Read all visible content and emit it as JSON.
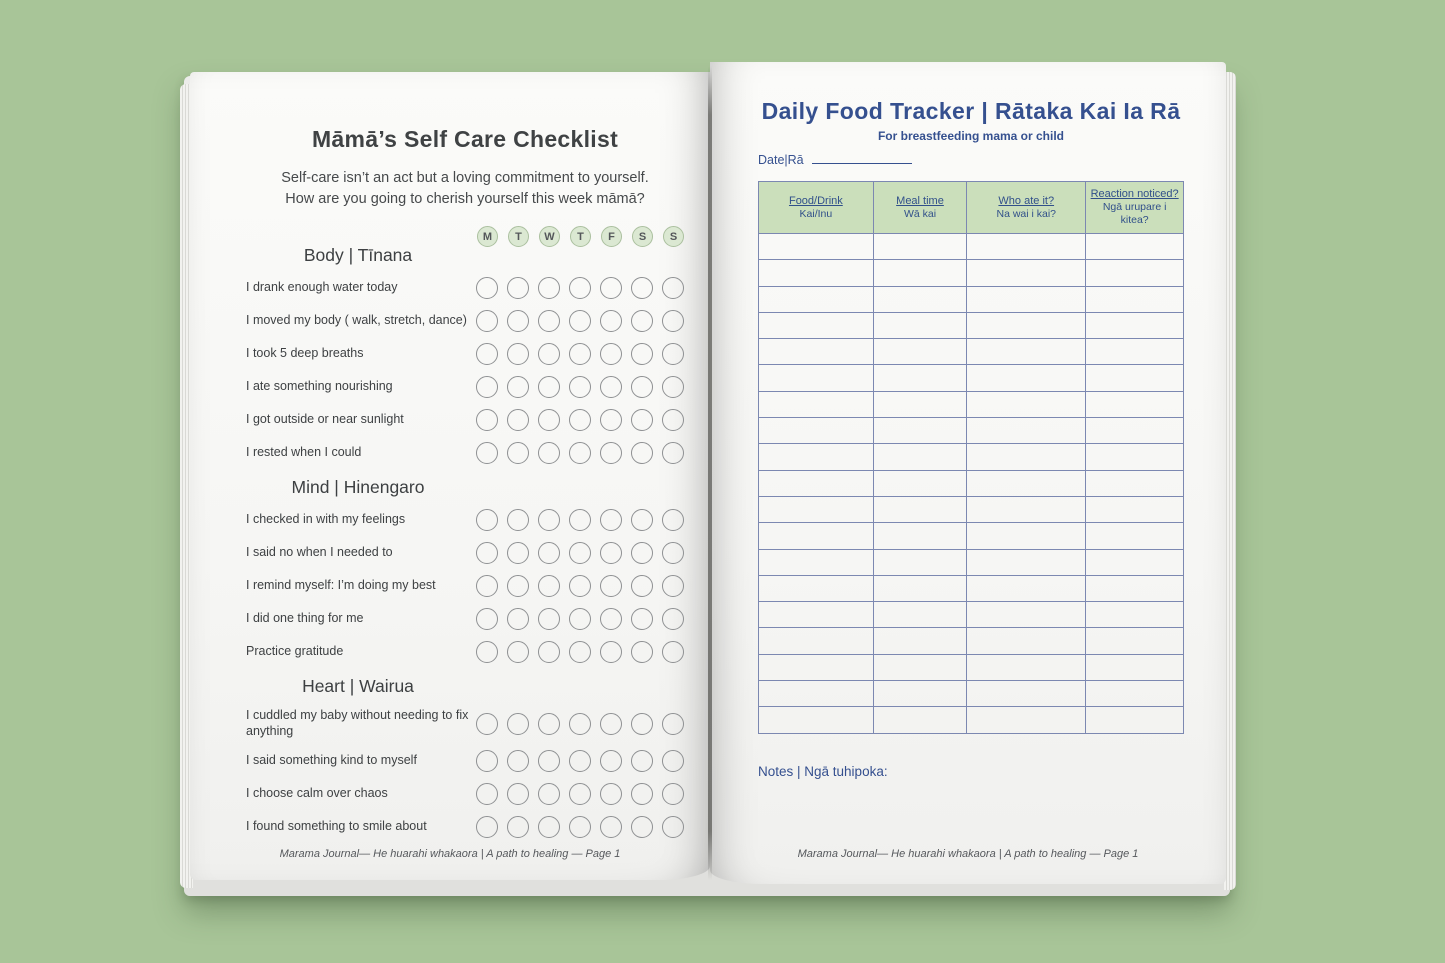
{
  "colors": {
    "bg": "#a8c598",
    "page": "#f7f7f5",
    "ink": "#3f4244",
    "navy": "#35508f",
    "border": "#7c88b1",
    "green": "#cbdfbb",
    "circle": "#8f9193",
    "dayfill": "#dbe8d2",
    "daystroke": "#abc09f",
    "footer": "#55585c"
  },
  "left_page": {
    "title": "Māmā’s Self Care Checklist",
    "subtitle_line1": "Self-care isn’t an act but a loving commitment to yourself.",
    "subtitle_line2": "How are you going to cherish yourself this week māmā?",
    "day_labels": [
      "M",
      "T",
      "W",
      "T",
      "F",
      "S",
      "S"
    ],
    "sections": [
      {
        "heading": "Body | Tīnana",
        "items": [
          "I drank enough water today",
          "I moved my body ( walk, stretch, dance)",
          "I took 5 deep breaths",
          "I ate something nourishing",
          "I got outside or near sunlight",
          "I rested when I could"
        ]
      },
      {
        "heading": "Mind | Hinengaro",
        "items": [
          "I checked in with my feelings",
          "I said no when I needed to",
          "I remind myself: I’m doing my best",
          "I did one thing for me",
          "Practice gratitude"
        ]
      },
      {
        "heading": "Heart | Wairua",
        "items": [
          "I cuddled my baby without needing to fix anything",
          "I said something kind to myself",
          "I choose calm over chaos",
          "I found something to smile about"
        ]
      }
    ],
    "footer": "Marama Journal— He huarahi whakaora | A path to healing — Page 1"
  },
  "right_page": {
    "title": "Daily Food Tracker | Rātaka Kai Ia Rā",
    "subtitle": "For breastfeeding mama or child",
    "date_label": "Date|Rā",
    "table": {
      "columns": [
        {
          "en": "Food/Drink",
          "mi": "Kai/Inu"
        },
        {
          "en": "Meal time",
          "mi": "Wā kai"
        },
        {
          "en": "Who ate it?",
          "mi": "Na wai i kai?"
        },
        {
          "en": "Reaction noticed?",
          "mi": "Ngā urupare i kitea?"
        }
      ],
      "empty_rows": 19
    },
    "notes_label": "Notes | Ngā tuhipoka:",
    "footer": "Marama Journal— He huarahi whakaora | A path to healing — Page 1"
  }
}
